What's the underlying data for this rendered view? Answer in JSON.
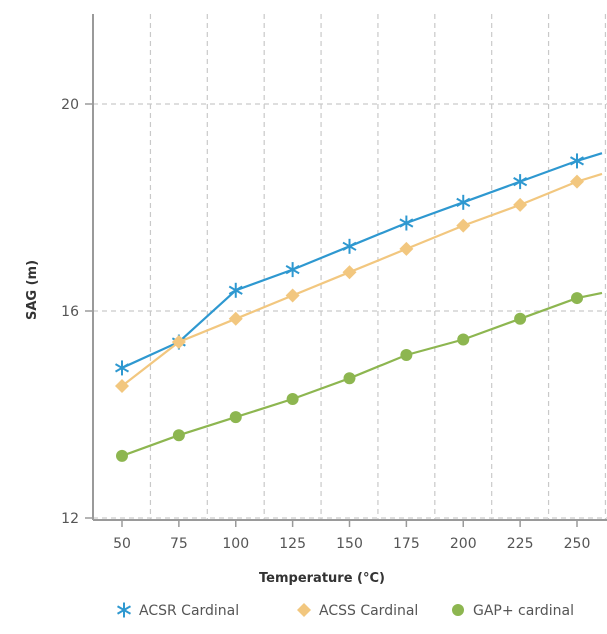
{
  "chart_data": {
    "type": "line",
    "xlabel": "Temperature (°C)",
    "ylabel": "SAG (m)",
    "x": [
      50,
      75,
      100,
      125,
      150,
      175,
      200,
      225,
      250
    ],
    "x_ticks": [
      "50",
      "75",
      "100",
      "125",
      "150",
      "175",
      "200",
      "225",
      "250"
    ],
    "y_ticks": [
      "12",
      "16",
      "20"
    ],
    "xlim": [
      38,
      261
    ],
    "ylim": [
      12,
      20
    ],
    "grid": true,
    "legend_position": "bottom",
    "series": [
      {
        "name": "ACSR Cardinal",
        "color": "#2e98d0",
        "marker": "asterisk",
        "x": [
          50,
          75,
          100,
          125,
          150,
          175,
          200,
          225,
          250,
          261
        ],
        "values": [
          14.9,
          15.4,
          16.4,
          16.8,
          17.25,
          17.7,
          18.1,
          18.5,
          18.9,
          19.05
        ]
      },
      {
        "name": "ACSS Cardinal",
        "color": "#f2c77f",
        "marker": "diamond",
        "x": [
          50,
          75,
          100,
          125,
          150,
          175,
          200,
          225,
          250,
          261
        ],
        "values": [
          14.55,
          15.4,
          15.85,
          16.3,
          16.75,
          17.2,
          17.65,
          18.05,
          18.5,
          18.65
        ]
      },
      {
        "name": "GAP+ cardinal",
        "color": "#8db650",
        "marker": "circle",
        "x": [
          50,
          75,
          100,
          125,
          150,
          175,
          200,
          225,
          250,
          261
        ],
        "values": [
          13.2,
          13.6,
          13.95,
          14.3,
          14.7,
          15.15,
          15.45,
          15.85,
          16.25,
          16.35
        ]
      }
    ]
  }
}
